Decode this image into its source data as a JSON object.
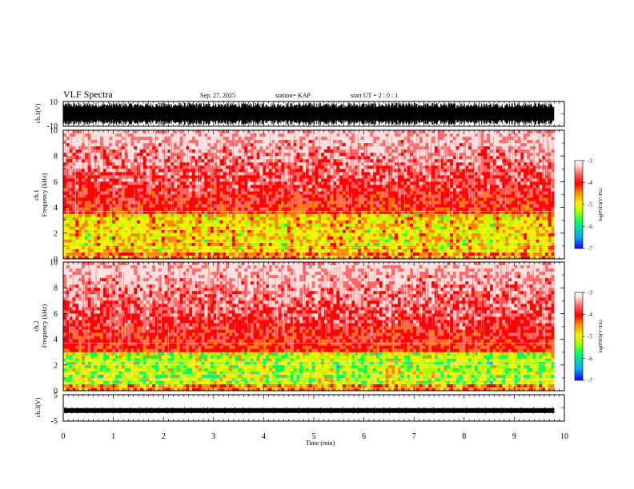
{
  "header": {
    "title": "VLF Spectra",
    "date": "Sep. 27, 2025",
    "station": "station= KAP",
    "start_ut": "start  UT =  2 : 0  : 1"
  },
  "panels": {
    "ch1_wave": {
      "ylabel": "ch.1(V)",
      "ymax_label": "10",
      "ymin_label": "-10"
    },
    "ch1_spec": {
      "ylabel_top": "ch.1",
      "ylabel": "Frequency  (kHz)"
    },
    "ch2_spec": {
      "ylabel_top": "ch.2",
      "ylabel": "Frequency  (kHz)"
    },
    "ch3_wave": {
      "ylabel": "ch.3(V)",
      "ymax_label": "5",
      "ymin_label": "-5"
    }
  },
  "colorbar": {
    "label": "log(PSD)(V²/Hz)",
    "ticks": [
      "-3",
      "-4",
      "-5",
      "-6",
      "-7"
    ]
  },
  "colors": {
    "scale": [
      "#1a00ff",
      "#00a8ff",
      "#00ff66",
      "#a8ff00",
      "#ffee00",
      "#ff8800",
      "#ff0000",
      "#ff6d6d",
      "#ffe0e0",
      "#ffffff"
    ]
  },
  "chart_data": [
    {
      "type": "line",
      "name": "ch.1 waveform",
      "ylabel": "ch.1(V)",
      "ylim": [
        -10,
        10
      ],
      "yticks": [
        "10",
        "-10"
      ],
      "xlim": [
        0,
        9.8
      ],
      "description_values": "dense oscillation between approx -9 and 9 V"
    },
    {
      "type": "heatmap",
      "name": "ch.1 spectrogram",
      "ylabel": "Frequency  (kHz)",
      "ylim": [
        0,
        10
      ],
      "yticks": [
        "0",
        "2",
        "4",
        "6",
        "8",
        "10"
      ],
      "xlim": [
        0,
        9.8
      ],
      "zlim": [
        -7,
        -3
      ],
      "band_kHz": [
        0.5,
        3.5
      ],
      "band_level": -4.6,
      "background_level": -3.5
    },
    {
      "type": "heatmap",
      "name": "ch.2 spectrogram",
      "ylabel": "Frequency  (kHz)",
      "ylim": [
        0,
        10
      ],
      "yticks": [
        "0",
        "2",
        "4",
        "6",
        "8",
        "10"
      ],
      "xlim": [
        0,
        9.8
      ],
      "zlim": [
        -7,
        -3
      ],
      "band_kHz": [
        0.5,
        3.0
      ],
      "band_level": -5.0,
      "background_level": -3.5
    },
    {
      "type": "line",
      "name": "ch.3 waveform",
      "ylabel": "ch.3(V)",
      "ylim": [
        -5,
        5
      ],
      "yticks": [
        "5",
        "-5"
      ],
      "xlim": [
        0,
        9.8
      ],
      "value_approx": -1.0
    }
  ],
  "xaxis": {
    "label": "Time  (min)",
    "ticks": [
      "0",
      "1",
      "2",
      "3",
      "4",
      "5",
      "6",
      "7",
      "8",
      "9",
      "10"
    ],
    "range": [
      0,
      10
    ]
  }
}
